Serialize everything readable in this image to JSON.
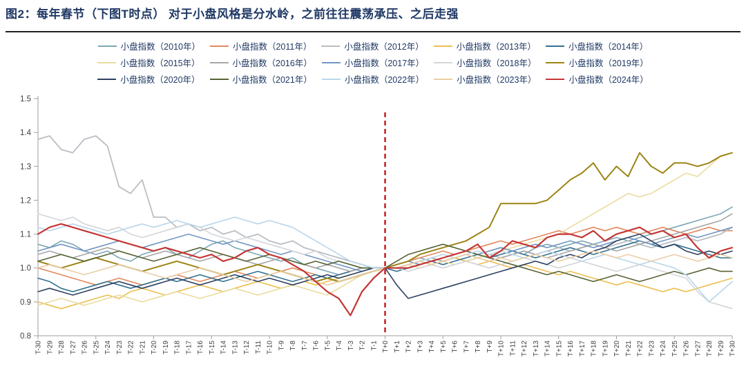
{
  "figure": {
    "title": "图2：每年春节（下图T时点）  对于小盘风格是分水岭，之前往往震荡承压、之后走强"
  },
  "colors": {
    "title_text": "#1f3864",
    "divider": "#1f1f1f",
    "legend_text": "#1f3864",
    "axis_line": "#9e9e9e",
    "axis_text": "#404040",
    "t0_line": "#c00000"
  },
  "chart_data": {
    "type": "line",
    "title": "",
    "xlabel": "",
    "ylabel": "",
    "ylim": [
      0.8,
      1.5
    ],
    "yticks": [
      "0.8",
      "0.9",
      "1.0",
      "1.1",
      "1.2",
      "1.3",
      "1.4",
      "1.5"
    ],
    "grid": false,
    "legend_position": "top",
    "annotation": {
      "type": "vertical-dashed-line",
      "x": "T+0",
      "color": "#c00000"
    },
    "categories": [
      "T-30",
      "T-29",
      "T-28",
      "T-27",
      "T-26",
      "T-25",
      "T-24",
      "T-23",
      "T-22",
      "T-21",
      "T-20",
      "T-19",
      "T-18",
      "T-17",
      "T-16",
      "T-15",
      "T-14",
      "T-13",
      "T-12",
      "T-11",
      "T-10",
      "T-9",
      "T-8",
      "T-7",
      "T-6",
      "T-5",
      "T-4",
      "T-3",
      "T-2",
      "T-1",
      "T+0",
      "T+1",
      "T+2",
      "T+3",
      "T+4",
      "T+5",
      "T+6",
      "T+7",
      "T+8",
      "T+9",
      "T+10",
      "T+11",
      "T+12",
      "T+13",
      "T+14",
      "T+15",
      "T+16",
      "T+17",
      "T+18",
      "T+19",
      "T+20",
      "T+21",
      "T+22",
      "T+23",
      "T+24",
      "T+25",
      "T+26",
      "T+27",
      "T+28",
      "T+29",
      "T+30"
    ],
    "series": [
      {
        "name": "小盘指数（2010年）",
        "color": "#7ba6b5",
        "width": 1.6,
        "values": [
          1.07,
          1.06,
          1.08,
          1.07,
          1.05,
          1.04,
          1.05,
          1.03,
          1.02,
          1.04,
          1.05,
          1.06,
          1.04,
          1.03,
          1.05,
          1.07,
          1.08,
          1.06,
          1.05,
          1.04,
          1.03,
          1.02,
          1.03,
          1.01,
          1.0,
          0.99,
          0.98,
          0.99,
          1.0,
          1.0,
          1.0,
          1.01,
          1.02,
          1.03,
          1.02,
          1.03,
          1.04,
          1.05,
          1.04,
          1.05,
          1.06,
          1.05,
          1.04,
          1.06,
          1.07,
          1.06,
          1.07,
          1.08,
          1.07,
          1.08,
          1.09,
          1.08,
          1.09,
          1.1,
          1.11,
          1.12,
          1.13,
          1.14,
          1.15,
          1.16,
          1.18
        ]
      },
      {
        "name": "小盘指数（2011年）",
        "color": "#e2875c",
        "width": 1.6,
        "values": [
          1.0,
          0.99,
          0.98,
          0.97,
          0.96,
          0.95,
          0.96,
          0.97,
          0.96,
          0.95,
          0.96,
          0.97,
          0.98,
          0.97,
          0.96,
          0.97,
          0.98,
          0.99,
          0.98,
          0.97,
          0.98,
          0.99,
          1.0,
          0.99,
          0.98,
          0.97,
          0.98,
          0.99,
          1.0,
          1.0,
          1.0,
          1.01,
          1.02,
          1.03,
          1.04,
          1.05,
          1.04,
          1.05,
          1.06,
          1.07,
          1.08,
          1.07,
          1.08,
          1.09,
          1.1,
          1.11,
          1.1,
          1.11,
          1.12,
          1.11,
          1.12,
          1.11,
          1.1,
          1.11,
          1.12,
          1.11,
          1.1,
          1.11,
          1.12,
          1.11,
          1.11
        ]
      },
      {
        "name": "小盘指数（2012年）",
        "color": "#b9bdc2",
        "width": 1.8,
        "values": [
          1.38,
          1.39,
          1.35,
          1.34,
          1.38,
          1.39,
          1.36,
          1.24,
          1.22,
          1.26,
          1.15,
          1.15,
          1.12,
          1.13,
          1.11,
          1.12,
          1.1,
          1.11,
          1.09,
          1.1,
          1.08,
          1.07,
          1.08,
          1.06,
          1.05,
          1.04,
          1.03,
          1.02,
          1.01,
          1.0,
          1.0,
          1.0,
          1.01,
          1.02,
          1.01,
          1.02,
          1.03,
          1.02,
          1.03,
          1.04,
          1.03,
          1.04,
          1.05,
          1.04,
          1.05,
          1.06,
          1.05,
          1.06,
          1.07,
          1.06,
          1.07,
          1.08,
          1.07,
          1.06,
          1.07,
          1.08,
          1.09,
          1.08,
          1.09,
          1.1,
          1.12
        ]
      },
      {
        "name": "小盘指数（2013年）",
        "color": "#edbe4e",
        "width": 1.6,
        "values": [
          0.9,
          0.89,
          0.88,
          0.89,
          0.9,
          0.91,
          0.92,
          0.91,
          0.93,
          0.94,
          0.93,
          0.92,
          0.93,
          0.94,
          0.95,
          0.94,
          0.93,
          0.94,
          0.95,
          0.96,
          0.95,
          0.94,
          0.95,
          0.96,
          0.95,
          0.96,
          0.97,
          0.98,
          0.99,
          1.0,
          1.0,
          1.0,
          1.01,
          1.02,
          1.01,
          1.02,
          1.03,
          1.02,
          1.01,
          1.02,
          1.01,
          1.0,
          1.01,
          1.0,
          0.99,
          0.98,
          0.99,
          0.98,
          0.97,
          0.96,
          0.95,
          0.96,
          0.95,
          0.94,
          0.93,
          0.94,
          0.93,
          0.94,
          0.95,
          0.96,
          0.97
        ]
      },
      {
        "name": "小盘指数（2014年）",
        "color": "#31708f",
        "width": 1.6,
        "values": [
          0.97,
          0.96,
          0.94,
          0.93,
          0.94,
          0.95,
          0.96,
          0.95,
          0.94,
          0.95,
          0.96,
          0.97,
          0.96,
          0.97,
          0.98,
          0.97,
          0.96,
          0.97,
          0.98,
          0.99,
          0.98,
          0.97,
          0.96,
          0.97,
          0.98,
          0.97,
          0.98,
          0.99,
          1.0,
          1.0,
          1.0,
          0.99,
          1.0,
          1.01,
          1.02,
          1.01,
          1.02,
          1.03,
          1.04,
          1.03,
          1.04,
          1.05,
          1.04,
          1.03,
          1.04,
          1.05,
          1.06,
          1.05,
          1.04,
          1.05,
          1.06,
          1.07,
          1.08,
          1.07,
          1.06,
          1.07,
          1.06,
          1.05,
          1.04,
          1.03,
          1.03
        ]
      },
      {
        "name": "小盘指数（2015年）",
        "color": "#e9dc9e",
        "width": 1.6,
        "values": [
          0.89,
          0.9,
          0.91,
          0.9,
          0.89,
          0.9,
          0.91,
          0.92,
          0.91,
          0.9,
          0.91,
          0.92,
          0.93,
          0.92,
          0.91,
          0.92,
          0.93,
          0.94,
          0.93,
          0.92,
          0.93,
          0.94,
          0.95,
          0.94,
          0.93,
          0.92,
          0.94,
          0.96,
          0.98,
          0.99,
          1.0,
          1.0,
          1.01,
          1.0,
          1.01,
          1.02,
          1.01,
          1.02,
          1.03,
          1.04,
          1.05,
          1.06,
          1.07,
          1.08,
          1.09,
          1.1,
          1.12,
          1.14,
          1.16,
          1.18,
          1.2,
          1.22,
          1.21,
          1.22,
          1.24,
          1.26,
          1.28,
          1.27,
          1.3,
          1.33,
          1.34
        ]
      },
      {
        "name": "小盘指数（2016年）",
        "color": "#a6a6a6",
        "width": 1.6,
        "values": [
          1.04,
          1.05,
          1.04,
          1.03,
          1.04,
          1.05,
          1.06,
          1.05,
          1.04,
          1.03,
          1.04,
          1.05,
          1.04,
          1.03,
          1.02,
          1.03,
          1.04,
          1.03,
          1.02,
          1.01,
          1.02,
          1.03,
          1.02,
          1.01,
          1.0,
          1.01,
          1.0,
          0.99,
          1.0,
          1.0,
          1.0,
          1.0,
          1.01,
          1.02,
          1.03,
          1.02,
          1.03,
          1.04,
          1.03,
          1.02,
          1.03,
          1.04,
          1.05,
          1.04,
          1.03,
          1.04,
          1.05,
          1.06,
          1.07,
          1.06,
          1.05,
          1.06,
          1.07,
          1.08,
          1.09,
          1.1,
          1.11,
          1.12,
          1.13,
          1.14,
          1.16
        ]
      },
      {
        "name": "小盘指数（2017年）",
        "color": "#7296c4",
        "width": 1.6,
        "values": [
          1.05,
          1.06,
          1.07,
          1.06,
          1.05,
          1.06,
          1.07,
          1.08,
          1.07,
          1.06,
          1.07,
          1.08,
          1.09,
          1.1,
          1.09,
          1.08,
          1.07,
          1.08,
          1.07,
          1.06,
          1.05,
          1.04,
          1.05,
          1.04,
          1.03,
          1.02,
          1.01,
          1.0,
          0.99,
          1.0,
          1.0,
          1.01,
          1.02,
          1.01,
          1.02,
          1.03,
          1.04,
          1.05,
          1.04,
          1.05,
          1.06,
          1.05,
          1.06,
          1.07,
          1.06,
          1.07,
          1.08,
          1.07,
          1.06,
          1.07,
          1.08,
          1.09,
          1.08,
          1.07,
          1.08,
          1.09,
          1.1,
          1.09,
          1.1,
          1.11,
          1.12
        ]
      },
      {
        "name": "小盘指数（2018年）",
        "color": "#d2d5d9",
        "width": 1.6,
        "values": [
          1.16,
          1.15,
          1.14,
          1.15,
          1.13,
          1.12,
          1.11,
          1.12,
          1.1,
          1.09,
          1.1,
          1.11,
          1.12,
          1.13,
          1.12,
          1.1,
          1.09,
          1.08,
          1.09,
          1.08,
          1.07,
          1.06,
          1.05,
          1.04,
          1.05,
          1.03,
          1.02,
          1.01,
          1.0,
          1.0,
          1.0,
          1.0,
          0.99,
          1.0,
          1.01,
          1.0,
          1.01,
          1.02,
          1.01,
          1.0,
          1.01,
          1.02,
          1.03,
          1.02,
          1.01,
          1.0,
          1.01,
          1.02,
          1.01,
          1.0,
          0.99,
          1.0,
          1.01,
          1.0,
          0.99,
          0.98,
          0.97,
          0.93,
          0.9,
          0.89,
          0.88
        ]
      },
      {
        "name": "小盘指数（2019年）",
        "color": "#9c8312",
        "width": 2.0,
        "values": [
          1.02,
          1.01,
          1.0,
          1.01,
          1.02,
          1.03,
          1.02,
          1.01,
          1.0,
          0.99,
          1.0,
          1.01,
          1.02,
          1.01,
          1.0,
          0.99,
          0.98,
          0.99,
          1.0,
          1.01,
          1.0,
          0.99,
          0.98,
          0.97,
          0.96,
          0.97,
          0.96,
          0.97,
          0.98,
          0.99,
          1.0,
          1.01,
          1.02,
          1.04,
          1.05,
          1.06,
          1.07,
          1.08,
          1.1,
          1.12,
          1.19,
          1.19,
          1.19,
          1.19,
          1.2,
          1.23,
          1.26,
          1.28,
          1.31,
          1.26,
          1.3,
          1.27,
          1.34,
          1.3,
          1.28,
          1.31,
          1.31,
          1.3,
          1.31,
          1.33,
          1.34
        ]
      },
      {
        "name": "小盘指数（2020年）",
        "color": "#2b3f60",
        "width": 1.6,
        "values": [
          0.93,
          0.94,
          0.93,
          0.92,
          0.93,
          0.94,
          0.95,
          0.96,
          0.95,
          0.94,
          0.95,
          0.96,
          0.97,
          0.96,
          0.95,
          0.96,
          0.97,
          0.98,
          0.97,
          0.96,
          0.97,
          0.96,
          0.95,
          0.96,
          0.97,
          0.98,
          0.97,
          0.98,
          0.99,
          1.0,
          1.0,
          0.95,
          0.91,
          0.92,
          0.93,
          0.94,
          0.95,
          0.96,
          0.97,
          0.98,
          0.99,
          1.0,
          1.01,
          1.02,
          1.01,
          1.03,
          1.04,
          1.03,
          1.05,
          1.06,
          1.08,
          1.09,
          1.1,
          1.08,
          1.06,
          1.07,
          1.05,
          1.04,
          1.05,
          1.04,
          1.05
        ]
      },
      {
        "name": "小盘指数（2021年）",
        "color": "#556233",
        "width": 1.6,
        "values": [
          1.02,
          1.03,
          1.04,
          1.03,
          1.02,
          1.03,
          1.04,
          1.05,
          1.04,
          1.03,
          1.02,
          1.03,
          1.04,
          1.05,
          1.06,
          1.05,
          1.04,
          1.03,
          1.02,
          1.03,
          1.04,
          1.03,
          1.02,
          1.01,
          1.02,
          1.01,
          1.02,
          1.01,
          1.0,
          1.0,
          1.0,
          1.02,
          1.04,
          1.05,
          1.06,
          1.07,
          1.06,
          1.05,
          1.04,
          1.03,
          1.02,
          1.01,
          1.0,
          0.99,
          0.98,
          0.99,
          0.98,
          0.97,
          0.96,
          0.97,
          0.98,
          0.97,
          0.96,
          0.97,
          0.98,
          0.99,
          0.98,
          0.99,
          1.0,
          0.99,
          0.99
        ]
      },
      {
        "name": "小盘指数（2022年）",
        "color": "#b9d6ea",
        "width": 1.6,
        "values": [
          1.12,
          1.11,
          1.12,
          1.13,
          1.12,
          1.11,
          1.1,
          1.11,
          1.12,
          1.13,
          1.12,
          1.13,
          1.14,
          1.13,
          1.12,
          1.13,
          1.14,
          1.15,
          1.14,
          1.13,
          1.14,
          1.13,
          1.12,
          1.1,
          1.08,
          1.06,
          1.04,
          1.02,
          1.01,
          1.0,
          1.0,
          1.0,
          1.01,
          1.02,
          1.03,
          1.04,
          1.03,
          1.04,
          1.05,
          1.04,
          1.05,
          1.04,
          1.03,
          1.04,
          1.05,
          1.04,
          1.03,
          1.02,
          1.03,
          1.04,
          1.03,
          1.02,
          1.01,
          1.02,
          1.01,
          1.0,
          0.98,
          0.94,
          0.9,
          0.93,
          0.96
        ]
      },
      {
        "name": "小盘指数（2023年）",
        "color": "#eacda4",
        "width": 1.6,
        "values": [
          1.0,
          1.01,
          1.0,
          0.99,
          0.98,
          0.99,
          1.0,
          1.01,
          1.0,
          0.99,
          0.98,
          0.97,
          0.98,
          0.99,
          1.0,
          0.99,
          0.98,
          0.97,
          0.96,
          0.97,
          0.98,
          0.99,
          0.98,
          0.97,
          0.96,
          0.95,
          0.96,
          0.97,
          0.98,
          0.99,
          1.0,
          1.0,
          1.01,
          1.02,
          1.01,
          1.02,
          1.03,
          1.04,
          1.03,
          1.02,
          1.03,
          1.02,
          1.03,
          1.04,
          1.03,
          1.02,
          1.03,
          1.04,
          1.05,
          1.04,
          1.03,
          1.04,
          1.03,
          1.02,
          1.03,
          1.04,
          1.03,
          1.02,
          1.03,
          1.04,
          1.03
        ]
      },
      {
        "name": "小盘指数（2024年）",
        "color": "#c53434",
        "width": 2.2,
        "values": [
          1.1,
          1.12,
          1.13,
          1.12,
          1.11,
          1.1,
          1.09,
          1.08,
          1.07,
          1.06,
          1.05,
          1.06,
          1.05,
          1.04,
          1.03,
          1.04,
          1.02,
          1.03,
          1.05,
          1.06,
          1.04,
          1.03,
          1.01,
          0.99,
          0.96,
          0.93,
          0.91,
          0.86,
          0.93,
          0.97,
          1.0,
          1.0,
          1.0,
          1.01,
          1.02,
          1.03,
          1.04,
          1.05,
          1.07,
          1.03,
          1.05,
          1.08,
          1.07,
          1.06,
          1.09,
          1.1,
          1.1,
          1.09,
          1.11,
          1.08,
          1.1,
          1.11,
          1.12,
          1.1,
          1.11,
          1.09,
          1.1,
          1.06,
          1.03,
          1.05,
          1.06
        ]
      }
    ]
  }
}
